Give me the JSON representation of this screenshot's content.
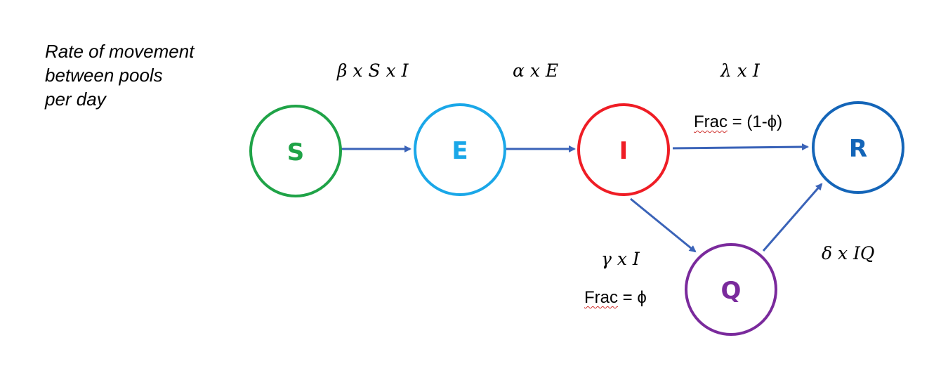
{
  "note": {
    "lines": [
      "Rate of movement",
      "between pools",
      "per day"
    ]
  },
  "nodes": {
    "S": {
      "label": "S",
      "color": "#1fa347"
    },
    "E": {
      "label": "E",
      "color": "#1aa7e8"
    },
    "I": {
      "label": "I",
      "color": "#ef1d25"
    },
    "R": {
      "label": "R",
      "color": "#1465b8"
    },
    "Q": {
      "label": "Q",
      "color": "#7a2a9c"
    }
  },
  "edges": {
    "s_to_e": {
      "rate": "β x S x I"
    },
    "e_to_i": {
      "rate": "α x E"
    },
    "i_to_r": {
      "rate": "λ x I",
      "frac_word": "Frac",
      "frac_rest": " = (1-ϕ)"
    },
    "i_to_q": {
      "rate": "γ x I",
      "frac_word": "Frac",
      "frac_rest": " = ϕ"
    },
    "q_to_r": {
      "rate": "δ x IQ"
    }
  },
  "colors": {
    "arrow": "#3a63b8",
    "spellcheck_underline": "#d0312d"
  }
}
